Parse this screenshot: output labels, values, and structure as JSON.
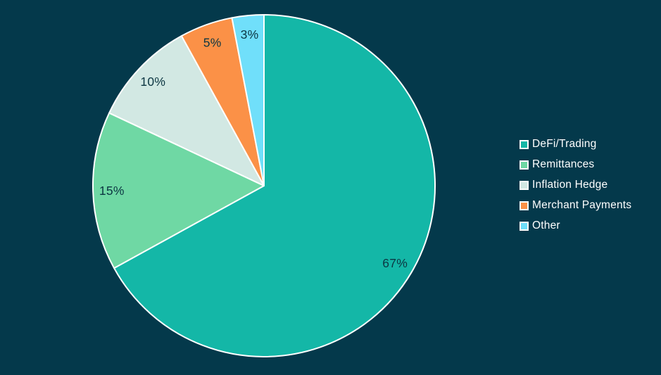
{
  "chart_data": {
    "type": "pie",
    "title": "",
    "labels": [
      "DeFi/Trading",
      "Remittances",
      "Inflation Hedge",
      "Merchant Payments",
      "Other"
    ],
    "values": [
      67,
      15,
      10,
      5,
      3
    ],
    "percent_labels": [
      "67%",
      "15%",
      "10%",
      "5%",
      "3%"
    ],
    "colors": [
      "#14B7A7",
      "#6FD8A4",
      "#D2E8E3",
      "#FB9147",
      "#70DFFA"
    ],
    "start_angle": "12-o-clock",
    "direction": "clockwise",
    "legend_position": "right",
    "slice_border_color": "#FFFFFF",
    "label_color": "#0C3642",
    "legend_text_color": "#FFFFFF",
    "background_color": "#04394B"
  }
}
